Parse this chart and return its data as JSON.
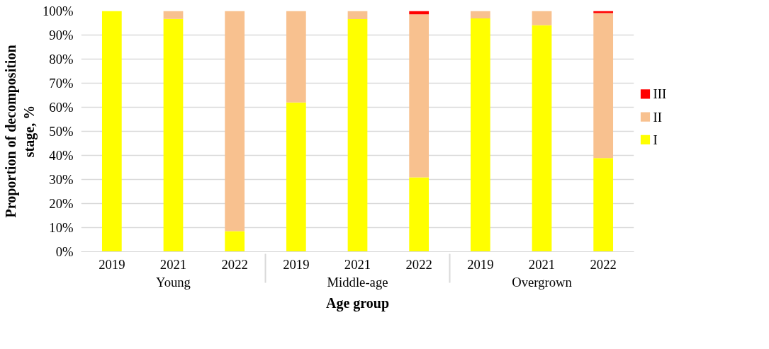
{
  "chart_data": {
    "type": "bar",
    "stacked": true,
    "xlabel": "Age group",
    "ylabel": "Proportion of decomposition\nstage, %",
    "categories": [
      "2019",
      "2021",
      "2022",
      "2019",
      "2021",
      "2022",
      "2019",
      "2021",
      "2022"
    ],
    "annotations": [
      "Young",
      "Middle-age",
      "Overgrown"
    ],
    "series": [
      {
        "name": "I",
        "color": "#ffff00",
        "values": [
          100,
          96.7,
          8.5,
          62.0,
          96.6,
          30.9,
          96.9,
          94.1,
          38.9
        ]
      },
      {
        "name": "II",
        "color": "#f8c18f",
        "values": [
          0,
          3.3,
          91.5,
          38.0,
          3.4,
          67.7,
          3.1,
          5.9,
          60.2
        ]
      },
      {
        "name": "III",
        "color": "#ff0000",
        "values": [
          0,
          0,
          0,
          0,
          0,
          1.4,
          0,
          0,
          0.9
        ]
      }
    ],
    "ylim": [
      0,
      100
    ],
    "yticks": [
      {
        "value": 0,
        "label": "0%"
      },
      {
        "value": 10,
        "label": "10%"
      },
      {
        "value": 20,
        "label": "20%"
      },
      {
        "value": 30,
        "label": "30%"
      },
      {
        "value": 40,
        "label": "40%"
      },
      {
        "value": 50,
        "label": "50%"
      },
      {
        "value": 60,
        "label": "60%"
      },
      {
        "value": 70,
        "label": "70%"
      },
      {
        "value": 80,
        "label": "80%"
      },
      {
        "value": 90,
        "label": "90%"
      },
      {
        "value": 100,
        "label": "100%"
      }
    ],
    "grid": "y",
    "legend": "right"
  }
}
